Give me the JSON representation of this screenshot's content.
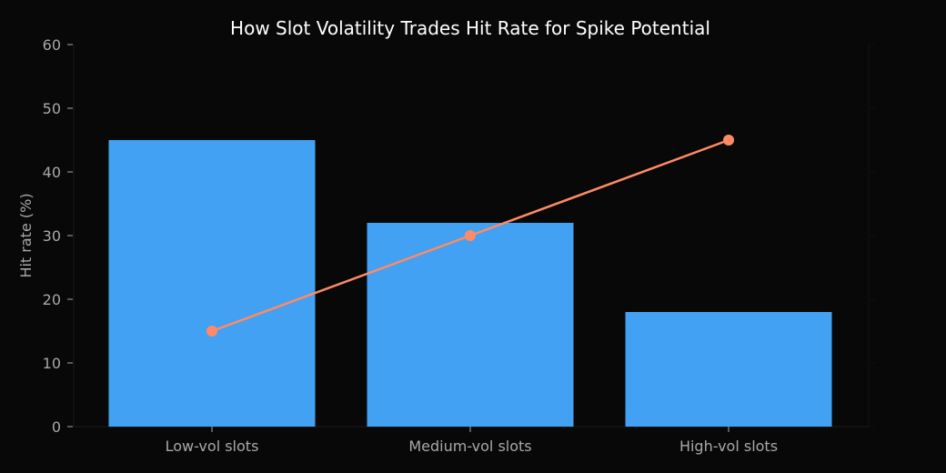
{
  "colors": {
    "background": "#080808",
    "bar": "#42a1f2",
    "line": "#ff8a65",
    "text": "#a8a8a8",
    "title": "#ffffff",
    "secondary_axis": "#111111"
  },
  "chart_data": {
    "type": "bar",
    "title": "How Slot Volatility Trades Hit Rate for Spike Potential",
    "xlabel": "",
    "ylabel": "Hit rate (%)",
    "ylim": [
      0,
      60
    ],
    "yticks": [
      0,
      10,
      20,
      30,
      40,
      50,
      60
    ],
    "categories": [
      "Low-vol slots",
      "Medium-vol slots",
      "High-vol slots"
    ],
    "grid": false,
    "legend": null,
    "series": [
      {
        "name": "Hit rate (%)",
        "type": "bar",
        "axis": "left",
        "values": [
          45,
          32,
          18
        ]
      },
      {
        "name": "Spike potential",
        "type": "line",
        "axis": "right",
        "marker": "circle",
        "values": [
          15,
          30,
          45
        ]
      }
    ],
    "secondary_axis": {
      "visible": "near-invisible",
      "note": "right axis rendered in near-black; same visual scale as left"
    }
  }
}
